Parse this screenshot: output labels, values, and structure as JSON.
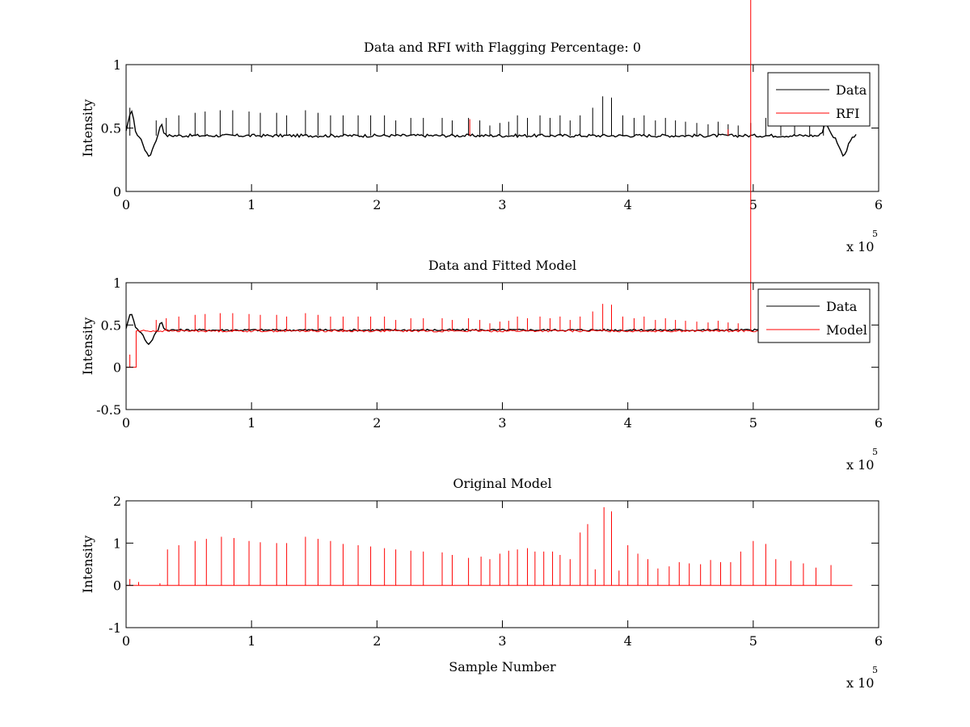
{
  "figure": {
    "background": "#ffffff"
  },
  "chart_data": [
    {
      "type": "line",
      "title": "Data and RFI with Flagging Percentage: 0",
      "xlabel": "",
      "ylabel": "Intensity",
      "xlim": [
        0,
        600000
      ],
      "ylim": [
        0,
        1
      ],
      "x_ticks": [
        0,
        100000,
        200000,
        300000,
        400000,
        500000,
        600000
      ],
      "x_tick_labels": [
        "0",
        "1",
        "2",
        "3",
        "4",
        "5",
        "6"
      ],
      "y_ticks": [
        0,
        0.5,
        1
      ],
      "y_tick_labels": [
        "0",
        "0.5",
        "1"
      ],
      "x_multiplier": {
        "base": "x 10",
        "exponent": "5"
      },
      "legend": {
        "position": "top-right",
        "entries": [
          {
            "label": "Data",
            "color": "#000000"
          },
          {
            "label": "RFI",
            "color": "#ff0000"
          }
        ]
      },
      "grid": false,
      "series": [
        {
          "name": "Data",
          "color": "#000000",
          "baseline": 0.44,
          "spike_x": [
            3000,
            24000,
            32000,
            42000,
            55000,
            63000,
            75000,
            85000,
            98000,
            107000,
            120000,
            128000,
            143000,
            153000,
            163000,
            173000,
            185000,
            195000,
            206000,
            215000,
            227000,
            237000,
            252000,
            260000,
            273000,
            282000,
            290000,
            298000,
            305000,
            312000,
            320000,
            330000,
            338000,
            346000,
            354000,
            362000,
            372000,
            380000,
            387000,
            396000,
            405000,
            413000,
            422000,
            430000,
            438000,
            446000,
            455000,
            464000,
            472000,
            480000,
            488000,
            498000,
            510000,
            522000,
            533000,
            545000,
            556000
          ],
          "spike_y": [
            0.66,
            0.56,
            0.58,
            0.6,
            0.62,
            0.63,
            0.64,
            0.64,
            0.63,
            0.62,
            0.62,
            0.6,
            0.64,
            0.62,
            0.6,
            0.6,
            0.6,
            0.6,
            0.6,
            0.56,
            0.58,
            0.58,
            0.58,
            0.56,
            0.58,
            0.56,
            0.52,
            0.54,
            0.55,
            0.6,
            0.58,
            0.6,
            0.58,
            0.6,
            0.56,
            0.6,
            0.66,
            0.75,
            0.74,
            0.6,
            0.58,
            0.6,
            0.56,
            0.58,
            0.56,
            0.55,
            0.54,
            0.53,
            0.55,
            0.53,
            0.52,
            0.54,
            0.58,
            0.6,
            0.58,
            0.55,
            0.54
          ],
          "dips": [
            {
              "x": 18000,
              "y": 0.28
            },
            {
              "x": 572000,
              "y": 0.29
            }
          ]
        },
        {
          "name": "RFI",
          "color": "#ff0000",
          "spike_x": [
            274000,
            480000
          ],
          "spike_y": [
            0.57,
            0.49
          ]
        }
      ]
    },
    {
      "type": "line",
      "title": "Data and Fitted Model",
      "xlabel": "",
      "ylabel": "Intensity",
      "xlim": [
        0,
        600000
      ],
      "ylim": [
        -0.5,
        1
      ],
      "x_ticks": [
        0,
        100000,
        200000,
        300000,
        400000,
        500000,
        600000
      ],
      "x_tick_labels": [
        "0",
        "1",
        "2",
        "3",
        "4",
        "5",
        "6"
      ],
      "y_ticks": [
        -0.5,
        0,
        0.5,
        1
      ],
      "y_tick_labels": [
        "-0.5",
        "0",
        "0.5",
        "1"
      ],
      "x_multiplier": {
        "base": "x 10",
        "exponent": "5"
      },
      "legend": {
        "position": "top-right",
        "entries": [
          {
            "label": "Data",
            "color": "#000000"
          },
          {
            "label": "Model",
            "color": "#ff0000"
          }
        ]
      },
      "grid": false,
      "series": [
        {
          "name": "Data",
          "color": "#000000",
          "baseline": 0.44,
          "dips": [
            {
              "x": 18000,
              "y": 0.28
            }
          ]
        },
        {
          "name": "Model",
          "color": "#ff0000",
          "baseline": 0.43,
          "step": {
            "x_start": 0,
            "x_end": 8000,
            "y": 0,
            "spike_x": 3000,
            "spike_y": 0.15
          },
          "spike_x": [
            24000,
            32000,
            42000,
            55000,
            63000,
            75000,
            85000,
            98000,
            107000,
            120000,
            128000,
            143000,
            153000,
            163000,
            173000,
            185000,
            195000,
            206000,
            215000,
            227000,
            237000,
            252000,
            260000,
            273000,
            282000,
            290000,
            298000,
            305000,
            312000,
            320000,
            330000,
            338000,
            346000,
            354000,
            362000,
            372000,
            380000,
            387000,
            396000,
            405000,
            413000,
            422000,
            430000,
            438000,
            446000,
            455000,
            464000,
            472000,
            480000,
            488000,
            498000
          ],
          "spike_y": [
            0.56,
            0.58,
            0.6,
            0.62,
            0.63,
            0.64,
            0.64,
            0.63,
            0.62,
            0.62,
            0.6,
            0.64,
            0.62,
            0.6,
            0.6,
            0.6,
            0.6,
            0.6,
            0.56,
            0.58,
            0.58,
            0.58,
            0.56,
            0.58,
            0.56,
            0.52,
            0.54,
            0.55,
            0.6,
            0.58,
            0.6,
            0.58,
            0.6,
            0.56,
            0.6,
            0.66,
            0.75,
            0.74,
            0.6,
            0.58,
            0.6,
            0.56,
            0.58,
            0.56,
            0.55,
            0.54,
            0.53,
            0.55,
            0.53,
            0.52
          ]
        }
      ]
    },
    {
      "type": "line",
      "title": "Original Model",
      "xlabel": "Sample Number",
      "ylabel": "Intensity",
      "xlim": [
        0,
        600000
      ],
      "ylim": [
        -1,
        2
      ],
      "x_ticks": [
        0,
        100000,
        200000,
        300000,
        400000,
        500000,
        600000
      ],
      "x_tick_labels": [
        "0",
        "1",
        "2",
        "3",
        "4",
        "5",
        "6"
      ],
      "y_ticks": [
        -1,
        0,
        1,
        2
      ],
      "y_tick_labels": [
        "-1",
        "0",
        "1",
        "2"
      ],
      "x_multiplier": {
        "base": "x 10",
        "exponent": "5"
      },
      "legend": null,
      "grid": false,
      "series": [
        {
          "name": "",
          "color": "#ff0000",
          "baseline": 0,
          "x_end": 580000,
          "spike_x": [
            3000,
            10000,
            27000,
            33000,
            42000,
            55000,
            64000,
            76000,
            86000,
            98000,
            107000,
            120000,
            128000,
            143000,
            153000,
            163000,
            173000,
            185000,
            195000,
            206000,
            215000,
            227000,
            237000,
            252000,
            260000,
            273000,
            283000,
            290000,
            298000,
            305000,
            312000,
            320000,
            326000,
            333000,
            340000,
            346000,
            354000,
            362000,
            368000,
            374000,
            381000,
            387000,
            393000,
            400000,
            408000,
            416000,
            424000,
            433000,
            441000,
            449000,
            458000,
            466000,
            474000,
            482000,
            490000,
            500000,
            510000,
            518000,
            530000,
            540000,
            550000,
            562000
          ],
          "spike_y": [
            0.15,
            0.08,
            0.05,
            0.85,
            0.95,
            1.05,
            1.1,
            1.15,
            1.12,
            1.05,
            1.02,
            1.0,
            1.0,
            1.15,
            1.1,
            1.05,
            0.98,
            0.95,
            0.92,
            0.88,
            0.85,
            0.82,
            0.8,
            0.78,
            0.72,
            0.65,
            0.68,
            0.62,
            0.75,
            0.82,
            0.85,
            0.88,
            0.8,
            0.8,
            0.8,
            0.72,
            0.62,
            1.25,
            1.45,
            0.38,
            1.85,
            1.75,
            0.35,
            0.95,
            0.75,
            0.62,
            0.4,
            0.45,
            0.55,
            0.52,
            0.5,
            0.6,
            0.55,
            0.55,
            0.8,
            1.05,
            0.98,
            0.62,
            0.58,
            0.52,
            0.42,
            0.48
          ]
        }
      ]
    }
  ]
}
